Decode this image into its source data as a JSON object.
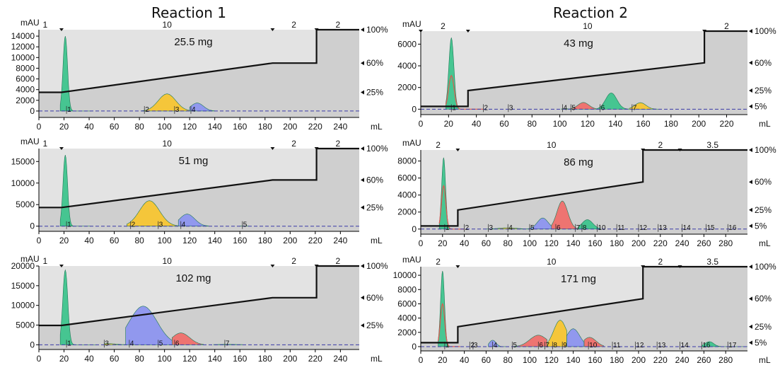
{
  "titles": {
    "left": "Reaction 1",
    "right": "Reaction 2"
  },
  "colors": {
    "green": "#3ec48d",
    "yellow": "#f7c531",
    "blue": "#8d95ef",
    "red": "#ef6f6c",
    "shade": "#e3e3e3",
    "shadeDark": "#cfcfcf",
    "gradient": "#111111"
  },
  "chart_data": [
    {
      "type": "area",
      "title": "25.5 mg",
      "ylabel": "mAU",
      "xlabel": "mL",
      "xlim": [
        0,
        255
      ],
      "ylim": [
        -1200,
        15200
      ],
      "xticks": [
        0,
        20,
        40,
        60,
        80,
        100,
        120,
        140,
        160,
        180,
        200,
        220,
        240
      ],
      "yticks": [
        0,
        2000,
        4000,
        6000,
        8000,
        10000,
        12000,
        14000
      ],
      "right_ticks": [
        "100%",
        "60%",
        "25%"
      ],
      "gradient": [
        [
          0,
          25
        ],
        [
          18,
          25
        ],
        [
          186,
          60
        ],
        [
          221,
          60
        ],
        [
          221,
          100
        ],
        [
          255,
          100
        ]
      ],
      "top_labels": [
        {
          "x": 5,
          "text": "1"
        },
        {
          "x": 102,
          "text": "10"
        },
        {
          "x": 203,
          "text": "2"
        },
        {
          "x": 238,
          "text": "2"
        }
      ],
      "top_markers": [
        18,
        186,
        221
      ],
      "peaks": [
        {
          "center": 21,
          "height": 14000,
          "width": 1.8,
          "color": "green",
          "from": 17,
          "to": 42
        },
        {
          "center": 102,
          "height": 3200,
          "width": 7,
          "color": "yellow",
          "from": 82,
          "to": 120
        },
        {
          "center": 126,
          "height": 1500,
          "width": 5,
          "color": "blue",
          "from": 120,
          "to": 140
        }
      ],
      "fractions": [
        {
          "x": 22,
          "label": "1"
        },
        {
          "x": 84,
          "label": "2"
        },
        {
          "x": 108,
          "label": "3"
        },
        {
          "x": 121,
          "label": "4"
        }
      ]
    },
    {
      "type": "area",
      "title": "51 mg",
      "ylabel": "mAU",
      "xlabel": "mL",
      "xlim": [
        0,
        255
      ],
      "ylim": [
        -1200,
        18000
      ],
      "xticks": [
        0,
        20,
        40,
        60,
        80,
        100,
        120,
        140,
        160,
        180,
        200,
        220,
        240
      ],
      "yticks": [
        0,
        5000,
        10000,
        15000
      ],
      "right_ticks": [
        "100%",
        "60%",
        "25%"
      ],
      "gradient": [
        [
          0,
          25
        ],
        [
          18,
          25
        ],
        [
          186,
          60
        ],
        [
          221,
          60
        ],
        [
          221,
          100
        ],
        [
          255,
          100
        ]
      ],
      "top_labels": [
        {
          "x": 5,
          "text": "1"
        },
        {
          "x": 102,
          "text": "10"
        },
        {
          "x": 203,
          "text": "2"
        },
        {
          "x": 238,
          "text": "2"
        }
      ],
      "top_markers": [
        18,
        186,
        221
      ],
      "peaks": [
        {
          "center": 21,
          "height": 16500,
          "width": 1.8,
          "color": "green",
          "from": 17,
          "to": 42
        },
        {
          "center": 88,
          "height": 5900,
          "width": 8,
          "color": "yellow",
          "from": 70,
          "to": 111
        },
        {
          "center": 118,
          "height": 2800,
          "width": 6,
          "color": "blue",
          "from": 111,
          "to": 135
        },
        {
          "center": 163,
          "height": 50,
          "width": 2,
          "color": "red",
          "from": 160,
          "to": 167
        }
      ],
      "fractions": [
        {
          "x": 22,
          "label": "1"
        },
        {
          "x": 73,
          "label": "2"
        },
        {
          "x": 95,
          "label": "3"
        },
        {
          "x": 113,
          "label": "4"
        },
        {
          "x": 162,
          "label": "5"
        }
      ]
    },
    {
      "type": "area",
      "title": "102 mg",
      "ylabel": "mAU",
      "xlabel": "mL",
      "xlim": [
        0,
        255
      ],
      "ylim": [
        -1200,
        20000
      ],
      "xticks": [
        0,
        20,
        40,
        60,
        80,
        100,
        120,
        140,
        160,
        180,
        200,
        220,
        240
      ],
      "yticks": [
        0,
        5000,
        10000,
        15000,
        20000
      ],
      "right_ticks": [
        "100%",
        "60%",
        "25%"
      ],
      "gradient": [
        [
          0,
          25
        ],
        [
          18,
          25
        ],
        [
          186,
          60
        ],
        [
          221,
          60
        ],
        [
          221,
          100
        ],
        [
          255,
          100
        ]
      ],
      "top_labels": [
        {
          "x": 5,
          "text": "1"
        },
        {
          "x": 102,
          "text": "10"
        },
        {
          "x": 203,
          "text": "2"
        },
        {
          "x": 238,
          "text": "2"
        }
      ],
      "top_markers": [
        18,
        186,
        221
      ],
      "peaks": [
        {
          "center": 21,
          "height": 19000,
          "width": 2,
          "color": "green",
          "from": 17,
          "to": 46
        },
        {
          "center": 55,
          "height": 300,
          "width": 6,
          "color": "yellow",
          "from": 52,
          "to": 69
        },
        {
          "center": 83,
          "height": 9800,
          "width": 11,
          "color": "blue",
          "from": 69,
          "to": 106
        },
        {
          "center": 113,
          "height": 3000,
          "width": 7,
          "color": "red",
          "from": 106,
          "to": 131
        },
        {
          "center": 150,
          "height": 100,
          "width": 8,
          "color": "green",
          "from": 139,
          "to": 162
        }
      ],
      "fractions": [
        {
          "x": 22,
          "label": "1"
        },
        {
          "x": 52,
          "label": "3"
        },
        {
          "x": 72,
          "label": "4"
        },
        {
          "x": 95,
          "label": "5"
        },
        {
          "x": 108,
          "label": "6"
        },
        {
          "x": 148,
          "label": "7"
        }
      ]
    },
    {
      "type": "area",
      "title": "43 mg",
      "ylabel": "mAU",
      "xlabel": "mL",
      "xlim": [
        0,
        235
      ],
      "ylim": [
        -500,
        7200
      ],
      "xticks": [
        0,
        20,
        40,
        60,
        80,
        100,
        120,
        140,
        160,
        180,
        200,
        220
      ],
      "yticks": [
        0,
        2000,
        4000,
        6000
      ],
      "right_ticks": [
        "100%",
        "60%",
        "25%",
        "5%"
      ],
      "gradient": [
        [
          0,
          5
        ],
        [
          34,
          5
        ],
        [
          34,
          25
        ],
        [
          204,
          60
        ],
        [
          204,
          100
        ],
        [
          235,
          100
        ]
      ],
      "top_labels": [
        {
          "x": 16,
          "text": "2"
        },
        {
          "x": 120,
          "text": "10"
        },
        {
          "x": 220,
          "text": "2"
        }
      ],
      "top_markers": [
        0,
        34,
        204
      ],
      "peaks": [
        {
          "center": 22,
          "height": 6600,
          "width": 1.8,
          "color": "green",
          "from": 18,
          "to": 45,
          "inner": 3100
        },
        {
          "center": 117,
          "height": 620,
          "width": 4,
          "color": "red",
          "from": 107,
          "to": 127
        },
        {
          "center": 137,
          "height": 1500,
          "width": 4,
          "color": "green",
          "from": 127,
          "to": 150
        },
        {
          "center": 158,
          "height": 600,
          "width": 4,
          "color": "yellow",
          "from": 150,
          "to": 172
        },
        {
          "center": 104,
          "height": 50,
          "width": 2,
          "color": "blue",
          "from": 101,
          "to": 107
        }
      ],
      "fractions": [
        {
          "x": 22,
          "label": "1"
        },
        {
          "x": 45,
          "label": "2"
        },
        {
          "x": 63,
          "label": "3"
        },
        {
          "x": 102,
          "label": "4"
        },
        {
          "x": 108,
          "label": "5"
        },
        {
          "x": 129,
          "label": "6"
        },
        {
          "x": 152,
          "label": "7"
        }
      ]
    },
    {
      "type": "area",
      "title": "86 mg",
      "ylabel": "mAU",
      "xlabel": "mL",
      "xlim": [
        0,
        300
      ],
      "ylim": [
        -600,
        9300
      ],
      "xticks": [
        0,
        20,
        40,
        60,
        80,
        100,
        120,
        140,
        160,
        180,
        200,
        220,
        240,
        260,
        280
      ],
      "yticks": [
        0,
        2000,
        4000,
        6000,
        8000
      ],
      "right_ticks": [
        "100%",
        "60%",
        "25%",
        "5%"
      ],
      "gradient": [
        [
          0,
          5
        ],
        [
          34,
          5
        ],
        [
          34,
          25
        ],
        [
          204,
          60
        ],
        [
          204,
          100
        ],
        [
          300,
          100
        ]
      ],
      "top_labels": [
        {
          "x": 16,
          "text": "2"
        },
        {
          "x": 120,
          "text": "10"
        },
        {
          "x": 220,
          "text": "2"
        },
        {
          "x": 268,
          "text": "3.5"
        }
      ],
      "top_markers": [
        34,
        204,
        238
      ],
      "peaks": [
        {
          "center": 21,
          "height": 8400,
          "width": 1.8,
          "color": "green",
          "from": 17,
          "to": 40,
          "inner": 5100
        },
        {
          "center": 112,
          "height": 1300,
          "width": 5,
          "color": "blue",
          "from": 96,
          "to": 120
        },
        {
          "center": 130,
          "height": 3300,
          "width": 5,
          "color": "red",
          "from": 120,
          "to": 145
        },
        {
          "center": 153,
          "height": 1100,
          "width": 5,
          "color": "green",
          "from": 145,
          "to": 165
        },
        {
          "center": 80,
          "height": 150,
          "width": 8,
          "color": "yellow",
          "from": 60,
          "to": 96
        }
      ],
      "fractions": [
        {
          "x": 22,
          "label": "1"
        },
        {
          "x": 40,
          "label": "2"
        },
        {
          "x": 62,
          "label": "3"
        },
        {
          "x": 80,
          "label": "4"
        },
        {
          "x": 100,
          "label": "5"
        },
        {
          "x": 124,
          "label": "6"
        },
        {
          "x": 142,
          "label": "7"
        },
        {
          "x": 148,
          "label": "8"
        },
        {
          "x": 162,
          "label": "10"
        },
        {
          "x": 180,
          "label": "11"
        },
        {
          "x": 200,
          "label": "12"
        },
        {
          "x": 218,
          "label": "13"
        },
        {
          "x": 240,
          "label": "14"
        },
        {
          "x": 262,
          "label": "15"
        },
        {
          "x": 282,
          "label": "16"
        }
      ]
    },
    {
      "type": "area",
      "title": "171 mg",
      "ylabel": "mAU",
      "xlabel": "mL",
      "xlim": [
        0,
        300
      ],
      "ylim": [
        -600,
        11200
      ],
      "xticks": [
        0,
        20,
        40,
        60,
        80,
        100,
        120,
        140,
        160,
        180,
        200,
        220,
        240,
        260,
        280
      ],
      "yticks": [
        0,
        2000,
        4000,
        6000,
        8000,
        10000
      ],
      "right_ticks": [
        "100%",
        "60%",
        "25%",
        "5%"
      ],
      "gradient": [
        [
          0,
          5
        ],
        [
          34,
          5
        ],
        [
          34,
          25
        ],
        [
          204,
          60
        ],
        [
          204,
          100
        ],
        [
          300,
          100
        ]
      ],
      "top_labels": [
        {
          "x": 16,
          "text": "2"
        },
        {
          "x": 120,
          "text": "10"
        },
        {
          "x": 220,
          "text": "2"
        },
        {
          "x": 268,
          "text": "3.5"
        }
      ],
      "top_markers": [
        34,
        204,
        238
      ],
      "peaks": [
        {
          "center": 20,
          "height": 10600,
          "width": 1.8,
          "color": "green",
          "from": 16,
          "to": 36,
          "inner": 6000
        },
        {
          "center": 66,
          "height": 900,
          "width": 3,
          "color": "blue",
          "from": 62,
          "to": 80
        },
        {
          "center": 108,
          "height": 1600,
          "width": 8,
          "color": "red",
          "from": 86,
          "to": 116
        },
        {
          "center": 128,
          "height": 3700,
          "width": 6,
          "color": "yellow",
          "from": 116,
          "to": 134
        },
        {
          "center": 140,
          "height": 2500,
          "width": 6,
          "color": "blue",
          "from": 134,
          "to": 150
        },
        {
          "center": 155,
          "height": 1300,
          "width": 6,
          "color": "red",
          "from": 150,
          "to": 168
        },
        {
          "center": 265,
          "height": 700,
          "width": 4,
          "color": "green",
          "from": 258,
          "to": 300
        }
      ],
      "fractions": [
        {
          "x": 22,
          "label": "1"
        },
        {
          "x": 45,
          "label": "2"
        },
        {
          "x": 48,
          "label": "3"
        },
        {
          "x": 66,
          "label": "4"
        },
        {
          "x": 84,
          "label": "5"
        },
        {
          "x": 108,
          "label": "6"
        },
        {
          "x": 114,
          "label": "7"
        },
        {
          "x": 121,
          "label": "8"
        },
        {
          "x": 130,
          "label": "9"
        },
        {
          "x": 154,
          "label": "10"
        },
        {
          "x": 176,
          "label": "11"
        },
        {
          "x": 197,
          "label": "12"
        },
        {
          "x": 217,
          "label": "13"
        },
        {
          "x": 238,
          "label": "14"
        },
        {
          "x": 258,
          "label": "16"
        },
        {
          "x": 282,
          "label": "17"
        }
      ]
    }
  ]
}
